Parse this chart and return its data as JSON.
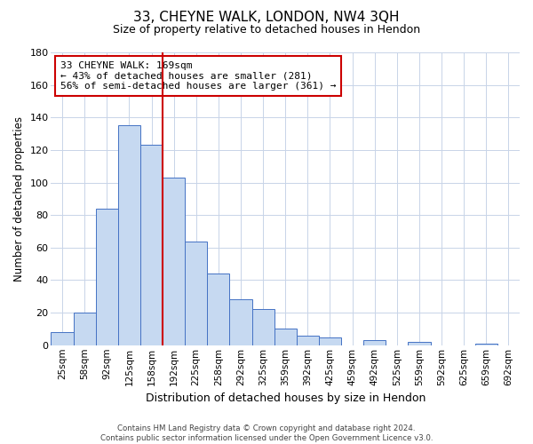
{
  "title": "33, CHEYNE WALK, LONDON, NW4 3QH",
  "subtitle": "Size of property relative to detached houses in Hendon",
  "xlabel": "Distribution of detached houses by size in Hendon",
  "ylabel": "Number of detached properties",
  "bar_labels": [
    "25sqm",
    "58sqm",
    "92sqm",
    "125sqm",
    "158sqm",
    "192sqm",
    "225sqm",
    "258sqm",
    "292sqm",
    "325sqm",
    "359sqm",
    "392sqm",
    "425sqm",
    "459sqm",
    "492sqm",
    "525sqm",
    "559sqm",
    "592sqm",
    "625sqm",
    "659sqm",
    "692sqm"
  ],
  "bar_values": [
    8,
    20,
    84,
    135,
    123,
    103,
    64,
    44,
    28,
    22,
    10,
    6,
    5,
    0,
    3,
    0,
    2,
    0,
    0,
    1,
    0
  ],
  "bar_color": "#c6d9f1",
  "bar_edge_color": "#4472c4",
  "vline_color": "#cc0000",
  "annotation_title": "33 CHEYNE WALK: 169sqm",
  "annotation_line1": "← 43% of detached houses are smaller (281)",
  "annotation_line2": "56% of semi-detached houses are larger (361) →",
  "annotation_box_color": "#cc0000",
  "ylim": [
    0,
    180
  ],
  "yticks": [
    0,
    20,
    40,
    60,
    80,
    100,
    120,
    140,
    160,
    180
  ],
  "footer_line1": "Contains HM Land Registry data © Crown copyright and database right 2024.",
  "footer_line2": "Contains public sector information licensed under the Open Government Licence v3.0.",
  "background_color": "#ffffff",
  "grid_color": "#c8d4e8"
}
